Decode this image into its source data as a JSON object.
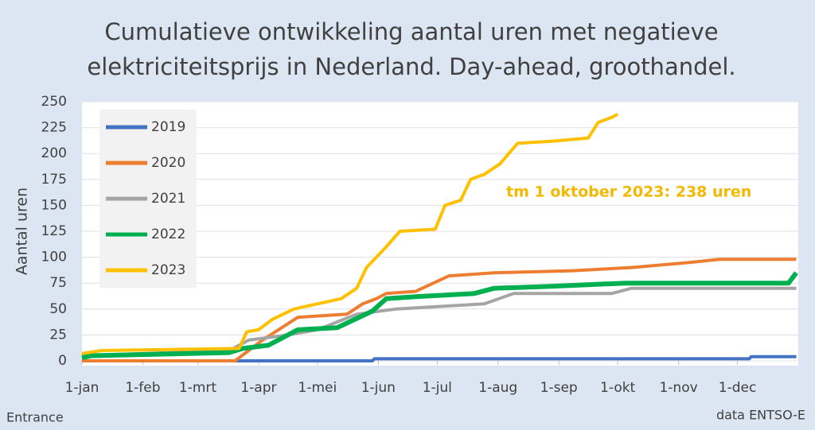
{
  "chart_data": {
    "type": "line",
    "title": [
      "Cumulatieve ontwikkeling aantal uren met negatieve",
      "elektriciteitsprijs in Nederland. Day-ahead, groothandel."
    ],
    "y_label": "Aantal uren",
    "annotation": "tm 1 oktober 2023: 238 uren",
    "annotation_color": "#f5b800",
    "source_left": "Entrance",
    "source_right": "data ENTSO-E",
    "xlim": [
      0,
      365
    ],
    "xticks": [
      {
        "value": 0,
        "label": "1-jan"
      },
      {
        "value": 31,
        "label": "1-feb"
      },
      {
        "value": 59,
        "label": "1-mrt"
      },
      {
        "value": 90,
        "label": "1-apr"
      },
      {
        "value": 120,
        "label": "1-mei"
      },
      {
        "value": 151,
        "label": "1-jun"
      },
      {
        "value": 181,
        "label": "1-jul"
      },
      {
        "value": 212,
        "label": "1-aug"
      },
      {
        "value": 243,
        "label": "1-sep"
      },
      {
        "value": 273,
        "label": "1-okt"
      },
      {
        "value": 304,
        "label": "1-nov"
      },
      {
        "value": 334,
        "label": "1-dec"
      }
    ],
    "ylim": [
      0,
      250
    ],
    "yticks": [
      0,
      25,
      50,
      75,
      100,
      125,
      150,
      175,
      200,
      225,
      250
    ],
    "grid": true,
    "legend": "top-left",
    "series": [
      {
        "name": "2019",
        "color": "#4472c4",
        "x": [
          0,
          148,
          149,
          340,
          341,
          364
        ],
        "values": [
          0,
          0,
          2,
          2,
          4,
          4
        ]
      },
      {
        "name": "2020",
        "color": "#ed7d31",
        "x": [
          0,
          78,
          92,
          110,
          135,
          143,
          150,
          155,
          170,
          187,
          210,
          250,
          280,
          310,
          325,
          364
        ],
        "values": [
          0,
          0,
          20,
          42,
          45,
          55,
          60,
          65,
          67,
          82,
          85,
          87,
          90,
          95,
          98,
          98
        ]
      },
      {
        "name": "2021",
        "color": "#a5a5a5",
        "x": [
          0,
          75,
          85,
          105,
          120,
          140,
          160,
          205,
          220,
          270,
          280,
          364
        ],
        "values": [
          5,
          10,
          20,
          25,
          30,
          45,
          50,
          55,
          65,
          65,
          70,
          70
        ]
      },
      {
        "name": "2022",
        "color": "#00b050",
        "x": [
          0,
          5,
          75,
          82,
          95,
          100,
          110,
          130,
          148,
          155,
          170,
          200,
          210,
          240,
          277,
          360,
          364
        ],
        "values": [
          3,
          5,
          8,
          12,
          15,
          20,
          30,
          32,
          48,
          60,
          62,
          65,
          70,
          72,
          75,
          75,
          85
        ]
      },
      {
        "name": "2023",
        "color": "#ffc000",
        "x": [
          0,
          10,
          80,
          84,
          90,
          97,
          108,
          120,
          132,
          140,
          145,
          150,
          155,
          162,
          180,
          185,
          193,
          198,
          205,
          213,
          222,
          240,
          258,
          263,
          270,
          273
        ],
        "values": [
          7,
          10,
          12,
          28,
          30,
          40,
          50,
          55,
          60,
          70,
          90,
          100,
          110,
          125,
          127,
          150,
          155,
          175,
          180,
          190,
          210,
          212,
          215,
          230,
          235,
          238
        ]
      }
    ]
  }
}
